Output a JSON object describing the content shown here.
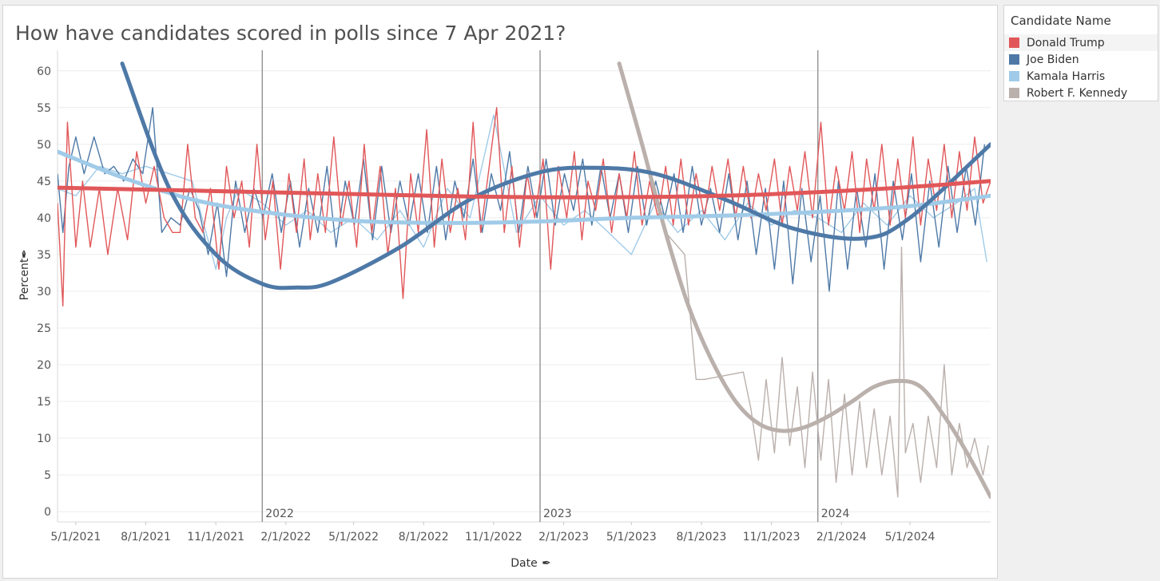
{
  "title": "How have candidates scored in polls since 7 Apr 2021?",
  "legend": {
    "title": "Candidate Name",
    "items": [
      {
        "label": "Donald Trump",
        "color": "#e15759"
      },
      {
        "label": "Joe Biden",
        "color": "#4e79a7"
      },
      {
        "label": "Kamala Harris",
        "color": "#a0cbe8"
      },
      {
        "label": "Robert F. Kennedy",
        "color": "#bab0ac"
      }
    ]
  },
  "chart_data": {
    "type": "line",
    "title": "How have candidates scored in polls since 7 Apr 2021?",
    "xlabel": "Date",
    "ylabel": "Percent",
    "x_pin_icon": "pin-icon",
    "y_pin_icon": "pin-icon",
    "x_range": [
      "2021-04-07",
      "2024-08-15"
    ],
    "ylim": [
      0,
      60
    ],
    "y_ticks": [
      0,
      5,
      10,
      15,
      20,
      25,
      30,
      35,
      40,
      45,
      50,
      55,
      60
    ],
    "x_ticks": [
      {
        "date": "2021-05-01",
        "label": "5/1/2021"
      },
      {
        "date": "2021-08-01",
        "label": "8/1/2021"
      },
      {
        "date": "2021-11-01",
        "label": "11/1/2021"
      },
      {
        "date": "2022-02-01",
        "label": "2/1/2022"
      },
      {
        "date": "2022-05-01",
        "label": "5/1/2022"
      },
      {
        "date": "2022-08-01",
        "label": "8/1/2022"
      },
      {
        "date": "2022-11-01",
        "label": "11/1/2022"
      },
      {
        "date": "2023-02-01",
        "label": "2/1/2023"
      },
      {
        "date": "2023-05-01",
        "label": "5/1/2023"
      },
      {
        "date": "2023-08-01",
        "label": "8/1/2023"
      },
      {
        "date": "2023-11-01",
        "label": "11/1/2023"
      },
      {
        "date": "2024-02-01",
        "label": "2/1/2024"
      },
      {
        "date": "2024-05-01",
        "label": "5/1/2024"
      }
    ],
    "year_markers": [
      {
        "date": "2022-01-01",
        "label": "2022"
      },
      {
        "date": "2023-01-01",
        "label": "2023"
      },
      {
        "date": "2024-01-01",
        "label": "2024"
      }
    ],
    "grid": true,
    "legend_position": "right",
    "series": [
      {
        "name": "Donald Trump",
        "color": "#e15759",
        "kind": "raw",
        "x": [
          "2021-04-07",
          "2021-04-14",
          "2021-04-20",
          "2021-05-01",
          "2021-05-10",
          "2021-05-20",
          "2021-06-01",
          "2021-06-12",
          "2021-06-25",
          "2021-07-08",
          "2021-07-20",
          "2021-08-01",
          "2021-08-12",
          "2021-08-25",
          "2021-09-05",
          "2021-09-15",
          "2021-09-25",
          "2021-10-05",
          "2021-10-15",
          "2021-10-25",
          "2021-11-05",
          "2021-11-15",
          "2021-11-25",
          "2021-12-05",
          "2021-12-15",
          "2021-12-25",
          "2022-01-05",
          "2022-01-15",
          "2022-01-25",
          "2022-02-05",
          "2022-02-15",
          "2022-02-25",
          "2022-03-05",
          "2022-03-15",
          "2022-03-25",
          "2022-04-05",
          "2022-04-15",
          "2022-04-25",
          "2022-05-05",
          "2022-05-15",
          "2022-05-25",
          "2022-06-05",
          "2022-06-15",
          "2022-06-25",
          "2022-07-05",
          "2022-07-15",
          "2022-07-25",
          "2022-08-05",
          "2022-08-15",
          "2022-08-25",
          "2022-09-05",
          "2022-09-15",
          "2022-09-25",
          "2022-10-05",
          "2022-10-15",
          "2022-10-25",
          "2022-11-05",
          "2022-11-15",
          "2022-11-25",
          "2022-12-05",
          "2022-12-15",
          "2022-12-25",
          "2023-01-05",
          "2023-01-15",
          "2023-01-25",
          "2023-02-05",
          "2023-02-15",
          "2023-02-25",
          "2023-03-05",
          "2023-03-15",
          "2023-03-25",
          "2023-04-05",
          "2023-04-15",
          "2023-04-25",
          "2023-05-05",
          "2023-05-15",
          "2023-05-25",
          "2023-06-05",
          "2023-06-15",
          "2023-06-25",
          "2023-07-05",
          "2023-07-15",
          "2023-07-25",
          "2023-08-05",
          "2023-08-15",
          "2023-08-25",
          "2023-09-05",
          "2023-09-15",
          "2023-09-25",
          "2023-10-05",
          "2023-10-15",
          "2023-10-25",
          "2023-11-05",
          "2023-11-15",
          "2023-11-25",
          "2023-12-05",
          "2023-12-15",
          "2023-12-25",
          "2024-01-05",
          "2024-01-15",
          "2024-01-25",
          "2024-02-05",
          "2024-02-15",
          "2024-02-25",
          "2024-03-05",
          "2024-03-15",
          "2024-03-25",
          "2024-04-05",
          "2024-04-15",
          "2024-04-25",
          "2024-05-05",
          "2024-05-15",
          "2024-05-25",
          "2024-06-05",
          "2024-06-15",
          "2024-06-25",
          "2024-07-05",
          "2024-07-15",
          "2024-07-25",
          "2024-08-05",
          "2024-08-15"
        ],
        "y": [
          42,
          28,
          53,
          36,
          45,
          36,
          44,
          35,
          44,
          37,
          49,
          42,
          47,
          40,
          38,
          38,
          50,
          40,
          38,
          44,
          33,
          47,
          40,
          45,
          36,
          50,
          37,
          45,
          33,
          46,
          38,
          48,
          37,
          46,
          38,
          51,
          39,
          45,
          36,
          50,
          38,
          47,
          35,
          44,
          29,
          46,
          38,
          52,
          36,
          48,
          38,
          44,
          37,
          53,
          38,
          46,
          55,
          38,
          47,
          36,
          46,
          40,
          48,
          33,
          47,
          40,
          49,
          37,
          45,
          41,
          48,
          38,
          46,
          40,
          49,
          39,
          45,
          40,
          47,
          39,
          48,
          39,
          46,
          40,
          47,
          41,
          48,
          40,
          47,
          40,
          46,
          41,
          48,
          39,
          47,
          41,
          49,
          40,
          53,
          39,
          47,
          41,
          49,
          38,
          48,
          41,
          50,
          39,
          48,
          40,
          51,
          39,
          48,
          41,
          50,
          40,
          49,
          41,
          51,
          42,
          45
        ]
      },
      {
        "name": "Joe Biden",
        "color": "#4e79a7",
        "kind": "raw",
        "x": [
          "2021-04-07",
          "2021-04-14",
          "2021-04-22",
          "2021-05-01",
          "2021-05-12",
          "2021-05-25",
          "2021-06-08",
          "2021-06-20",
          "2021-07-03",
          "2021-07-15",
          "2021-07-28",
          "2021-08-10",
          "2021-08-22",
          "2021-09-03",
          "2021-09-15",
          "2021-09-28",
          "2021-10-10",
          "2021-10-22",
          "2021-11-03",
          "2021-11-15",
          "2021-11-27",
          "2021-12-09",
          "2021-12-21",
          "2022-01-02",
          "2022-01-14",
          "2022-01-26",
          "2022-02-07",
          "2022-02-19",
          "2022-03-03",
          "2022-03-15",
          "2022-03-27",
          "2022-04-08",
          "2022-04-20",
          "2022-05-02",
          "2022-05-14",
          "2022-05-26",
          "2022-06-07",
          "2022-06-19",
          "2022-07-01",
          "2022-07-13",
          "2022-07-25",
          "2022-08-06",
          "2022-08-18",
          "2022-08-30",
          "2022-09-11",
          "2022-09-23",
          "2022-10-05",
          "2022-10-17",
          "2022-10-29",
          "2022-11-10",
          "2022-11-22",
          "2022-12-04",
          "2022-12-16",
          "2022-12-28",
          "2023-01-09",
          "2023-01-21",
          "2023-02-02",
          "2023-02-14",
          "2023-02-26",
          "2023-03-10",
          "2023-03-22",
          "2023-04-03",
          "2023-04-15",
          "2023-04-27",
          "2023-05-09",
          "2023-05-21",
          "2023-06-02",
          "2023-06-14",
          "2023-06-26",
          "2023-07-08",
          "2023-07-20",
          "2023-08-01",
          "2023-08-13",
          "2023-08-25",
          "2023-09-06",
          "2023-09-18",
          "2023-09-30",
          "2023-10-12",
          "2023-10-24",
          "2023-11-05",
          "2023-11-17",
          "2023-11-29",
          "2023-12-11",
          "2023-12-23",
          "2024-01-04",
          "2024-01-16",
          "2024-01-28",
          "2024-02-09",
          "2024-02-21",
          "2024-03-04",
          "2024-03-16",
          "2024-03-28",
          "2024-04-09",
          "2024-04-21",
          "2024-05-03",
          "2024-05-15",
          "2024-05-27",
          "2024-06-08",
          "2024-06-20",
          "2024-07-02",
          "2024-07-14",
          "2024-07-26",
          "2024-08-07"
        ],
        "y": [
          46,
          38,
          47,
          51,
          46,
          51,
          46,
          47,
          45,
          48,
          46,
          55,
          38,
          40,
          39,
          44,
          41,
          35,
          42,
          32,
          45,
          38,
          44,
          40,
          46,
          38,
          45,
          36,
          44,
          38,
          47,
          36,
          45,
          39,
          48,
          37,
          47,
          38,
          45,
          39,
          46,
          38,
          47,
          37,
          45,
          40,
          48,
          38,
          46,
          41,
          49,
          38,
          47,
          40,
          48,
          39,
          46,
          41,
          48,
          39,
          47,
          40,
          46,
          38,
          47,
          39,
          45,
          40,
          46,
          38,
          47,
          39,
          44,
          38,
          46,
          37,
          45,
          35,
          44,
          33,
          45,
          31,
          44,
          34,
          43,
          30,
          45,
          33,
          44,
          36,
          46,
          33,
          45,
          37,
          46,
          34,
          45,
          36,
          47,
          38,
          47,
          39,
          50
        ]
      },
      {
        "name": "Kamala Harris",
        "color": "#a0cbe8",
        "kind": "raw",
        "x": [
          "2021-04-07",
          "2021-05-01",
          "2021-06-01",
          "2021-07-01",
          "2021-08-01",
          "2021-09-01",
          "2021-10-01",
          "2021-11-01",
          "2021-11-15",
          "2021-12-01",
          "2022-01-01",
          "2022-02-01",
          "2022-03-01",
          "2022-04-01",
          "2022-05-01",
          "2022-06-01",
          "2022-07-01",
          "2022-08-01",
          "2022-09-01",
          "2022-10-01",
          "2022-11-01",
          "2022-12-01",
          "2023-01-01",
          "2023-02-01",
          "2023-03-01",
          "2023-04-01",
          "2023-05-01",
          "2023-06-01",
          "2023-07-01",
          "2023-08-01",
          "2023-09-01",
          "2023-10-01",
          "2023-11-01",
          "2023-12-01",
          "2024-01-01",
          "2024-02-01",
          "2024-03-01",
          "2024-04-01",
          "2024-05-01",
          "2024-06-01",
          "2024-07-01",
          "2024-07-25",
          "2024-08-10"
        ],
        "y": [
          44,
          43,
          47,
          46,
          47,
          46,
          45,
          33,
          40,
          44,
          42,
          39,
          41,
          38,
          40,
          37,
          41,
          36,
          44,
          40,
          54,
          38,
          43,
          39,
          41,
          38,
          35,
          42,
          38,
          41,
          37,
          42,
          39,
          41,
          40,
          38,
          42,
          39,
          43,
          40,
          42,
          44,
          34
        ]
      },
      {
        "name": "Robert F. Kennedy",
        "color": "#bab0ac",
        "kind": "raw",
        "x": [
          "2023-06-15",
          "2023-07-10",
          "2023-07-25",
          "2023-08-05",
          "2023-09-25",
          "2023-10-05",
          "2023-10-15",
          "2023-10-25",
          "2023-11-05",
          "2023-11-15",
          "2023-11-25",
          "2023-12-05",
          "2023-12-15",
          "2023-12-25",
          "2024-01-05",
          "2024-01-15",
          "2024-01-25",
          "2024-02-05",
          "2024-02-15",
          "2024-02-25",
          "2024-03-05",
          "2024-03-15",
          "2024-03-25",
          "2024-04-05",
          "2024-04-15",
          "2024-04-20",
          "2024-04-25",
          "2024-05-05",
          "2024-05-15",
          "2024-05-25",
          "2024-06-05",
          "2024-06-15",
          "2024-06-25",
          "2024-07-05",
          "2024-07-15",
          "2024-07-25",
          "2024-08-05",
          "2024-08-12"
        ],
        "y": [
          38,
          35,
          18,
          18,
          19,
          14,
          7,
          18,
          8,
          21,
          9,
          17,
          6,
          19,
          7,
          18,
          4,
          16,
          5,
          15,
          6,
          14,
          5,
          13,
          2,
          36,
          8,
          12,
          4,
          13,
          6,
          20,
          5,
          12,
          6,
          10,
          5,
          9
        ]
      },
      {
        "name": "Donald Trump",
        "color": "#e15759",
        "kind": "trend",
        "x": [
          "2021-04-07",
          "2021-10-01",
          "2022-04-01",
          "2022-10-01",
          "2023-04-01",
          "2023-10-01",
          "2024-04-01",
          "2024-08-15"
        ],
        "y": [
          44.1,
          43.7,
          43.3,
          42.9,
          42.8,
          43.1,
          44.0,
          45.0
        ]
      },
      {
        "name": "Joe Biden",
        "color": "#4e79a7",
        "kind": "trend",
        "x": [
          "2021-07-01",
          "2021-09-01",
          "2021-11-01",
          "2022-01-01",
          "2022-02-15",
          "2022-04-01",
          "2022-07-01",
          "2022-10-01",
          "2023-01-01",
          "2023-03-15",
          "2023-06-01",
          "2023-09-01",
          "2023-12-01",
          "2024-03-01",
          "2024-05-01",
          "2024-08-15"
        ],
        "y": [
          61,
          44,
          35,
          31,
          30.5,
          31.2,
          36,
          42.5,
          46.2,
          46.8,
          46,
          42.5,
          38.5,
          37.2,
          40,
          50
        ]
      },
      {
        "name": "Kamala Harris",
        "color": "#a0cbe8",
        "kind": "trend",
        "x": [
          "2021-04-07",
          "2021-07-01",
          "2021-10-01",
          "2022-01-01",
          "2022-05-01",
          "2022-09-01",
          "2023-01-01",
          "2023-05-01",
          "2023-09-01",
          "2024-01-01",
          "2024-05-01",
          "2024-08-15"
        ],
        "y": [
          49,
          45.5,
          42.5,
          40.8,
          39.6,
          39.3,
          39.5,
          40,
          40.3,
          40.8,
          41.6,
          43
        ]
      },
      {
        "name": "Robert F. Kennedy",
        "color": "#bab0ac",
        "kind": "trend",
        "x": [
          "2023-04-15",
          "2023-05-15",
          "2023-06-15",
          "2023-07-15",
          "2023-08-15",
          "2023-09-15",
          "2023-10-15",
          "2023-11-15",
          "2023-12-15",
          "2024-01-15",
          "2024-02-15",
          "2024-03-15",
          "2024-04-15",
          "2024-05-15",
          "2024-06-15",
          "2024-07-15",
          "2024-08-15"
        ],
        "y": [
          61,
          50,
          38,
          28,
          20.5,
          15,
          12,
          11,
          11.5,
          13,
          15,
          17,
          17.8,
          17,
          13,
          8,
          2
        ]
      }
    ]
  }
}
